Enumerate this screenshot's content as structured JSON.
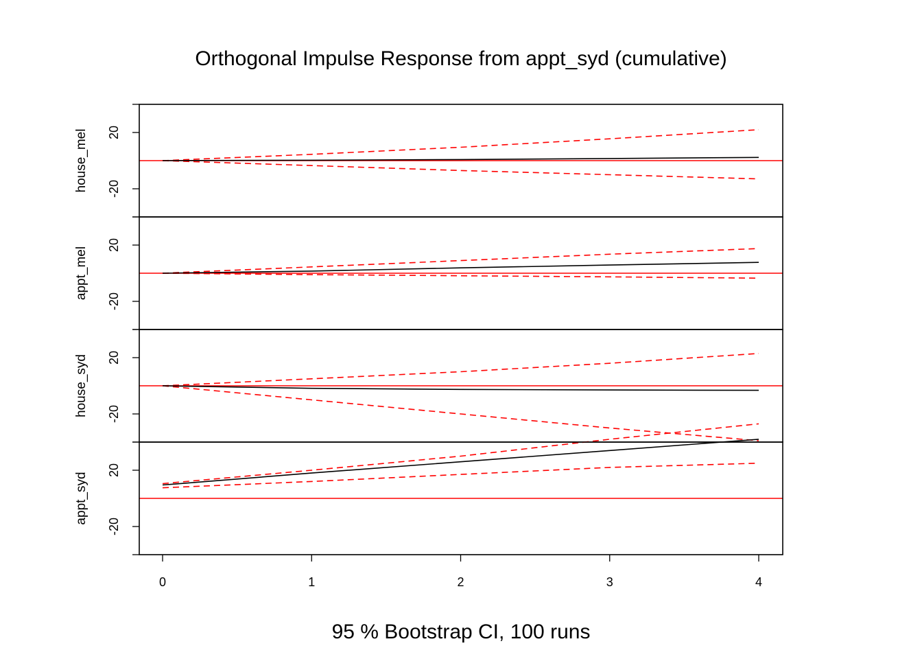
{
  "chart_data": {
    "type": "line",
    "title": "Orthogonal Impulse Response from appt_syd (cumulative)",
    "subtitle": "95 % Bootstrap CI,  100 runs",
    "x": [
      0,
      1,
      2,
      3,
      4
    ],
    "xlim": [
      0,
      4
    ],
    "ylim": [
      -40,
      40
    ],
    "ytick_labels": [
      "20",
      "-20"
    ],
    "xtick_labels": [
      "0",
      "1",
      "2",
      "3",
      "4"
    ],
    "colors": {
      "response": "#000000",
      "ci": "#ff0000",
      "zero": "#ff0000"
    },
    "panels": [
      {
        "label": "house_mel",
        "response": [
          0.0,
          0.3,
          0.8,
          1.5,
          2.3
        ],
        "lower": [
          0.0,
          -3.5,
          -7.0,
          -10.0,
          -13.0
        ],
        "upper": [
          0.0,
          4.5,
          9.5,
          15.5,
          22.0
        ]
      },
      {
        "label": "appt_mel",
        "response": [
          0.0,
          1.5,
          3.8,
          5.8,
          7.7
        ],
        "lower": [
          0.0,
          -1.0,
          -1.8,
          -2.6,
          -3.5
        ],
        "upper": [
          0.0,
          4.5,
          9.0,
          13.5,
          17.5
        ]
      },
      {
        "label": "house_syd",
        "response": [
          0.0,
          -1.8,
          -2.6,
          -3.0,
          -3.2
        ],
        "lower": [
          0.0,
          -10.0,
          -20.0,
          -30.0,
          -39.0
        ],
        "upper": [
          0.0,
          5.0,
          10.0,
          16.0,
          23.0
        ]
      },
      {
        "label": "appt_syd",
        "response": [
          9.5,
          18.0,
          26.0,
          34.0,
          42.0
        ],
        "lower": [
          7.5,
          12.0,
          17.0,
          22.0,
          25.0
        ],
        "upper": [
          10.5,
          20.0,
          30.0,
          42.0,
          53.0
        ]
      }
    ]
  }
}
